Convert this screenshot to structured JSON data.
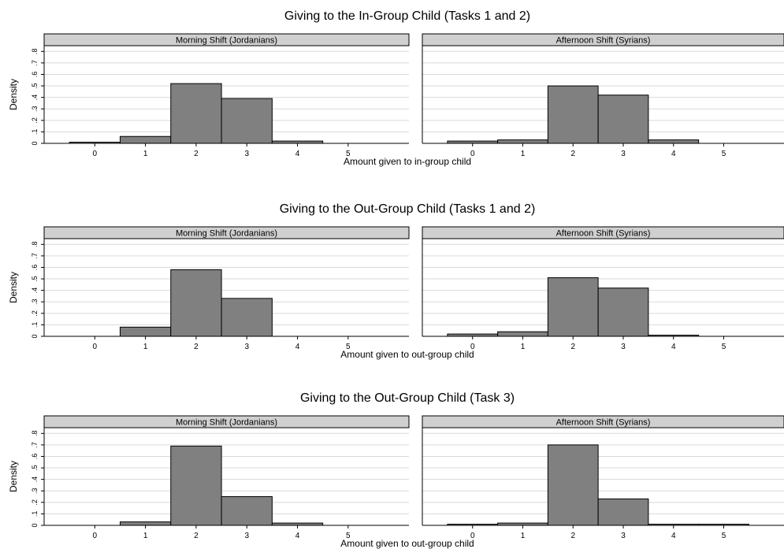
{
  "colors": {
    "bar_fill": "#808080",
    "bar_stroke": "#000000",
    "strip_fill": "#d0d0d0",
    "grid": "#d9d9d9",
    "axis": "#000000",
    "background": "#ffffff"
  },
  "chart_data": [
    {
      "type": "bar",
      "title": "Giving to the In-Group Child (Tasks 1 and 2)",
      "xlabel": "Amount given to in-group child",
      "ylabel": "Density",
      "x_ticks": [
        "0",
        "1",
        "2",
        "3",
        "4",
        "5"
      ],
      "y_ticks": [
        "0",
        ".1",
        ".2",
        ".3",
        ".4",
        ".5",
        ".6",
        ".7",
        ".8"
      ],
      "ylim": [
        0,
        0.85
      ],
      "xlim": [
        -1,
        6.2
      ],
      "grid": true,
      "panels": [
        {
          "name": "Morning Shift (Jordanians)",
          "x": [
            0,
            1,
            2,
            3,
            4
          ],
          "values": [
            0.01,
            0.06,
            0.52,
            0.39,
            0.02
          ]
        },
        {
          "name": "Afternoon Shift (Syrians)",
          "x": [
            0,
            1,
            2,
            3,
            4
          ],
          "values": [
            0.02,
            0.03,
            0.5,
            0.42,
            0.03
          ]
        }
      ]
    },
    {
      "type": "bar",
      "title": "Giving to the Out-Group Child (Tasks 1 and 2)",
      "xlabel": "Amount given to out-group child",
      "ylabel": "Density",
      "x_ticks": [
        "0",
        "1",
        "2",
        "3",
        "4",
        "5"
      ],
      "y_ticks": [
        "0",
        ".1",
        ".2",
        ".3",
        ".4",
        ".5",
        ".6",
        ".7",
        ".8"
      ],
      "ylim": [
        0,
        0.85
      ],
      "xlim": [
        -1,
        6.2
      ],
      "grid": true,
      "panels": [
        {
          "name": "Morning Shift (Jordanians)",
          "x": [
            1,
            2,
            3
          ],
          "values": [
            0.08,
            0.58,
            0.33
          ]
        },
        {
          "name": "Afternoon Shift (Syrians)",
          "x": [
            0,
            1,
            2,
            3,
            4
          ],
          "values": [
            0.02,
            0.04,
            0.51,
            0.42,
            0.01
          ]
        }
      ]
    },
    {
      "type": "bar",
      "title": "Giving to the Out-Group Child (Task 3)",
      "xlabel": "Amount given to out-group child",
      "ylabel": "Density",
      "x_ticks": [
        "0",
        "1",
        "2",
        "3",
        "4",
        "5"
      ],
      "y_ticks": [
        "0",
        ".1",
        ".2",
        ".3",
        ".4",
        ".5",
        ".6",
        ".7",
        ".8"
      ],
      "ylim": [
        0,
        0.85
      ],
      "xlim": [
        -1,
        6.2
      ],
      "grid": true,
      "panels": [
        {
          "name": "Morning Shift (Jordanians)",
          "x": [
            1,
            2,
            3,
            4
          ],
          "values": [
            0.03,
            0.69,
            0.25,
            0.02
          ]
        },
        {
          "name": "Afternoon Shift (Syrians)",
          "x": [
            0,
            1,
            2,
            3,
            4,
            5
          ],
          "values": [
            0.01,
            0.02,
            0.7,
            0.23,
            0.01,
            0.01
          ]
        }
      ]
    }
  ]
}
